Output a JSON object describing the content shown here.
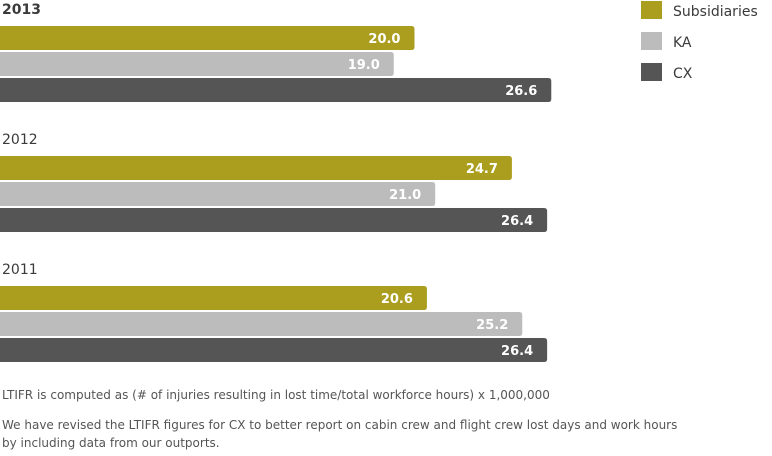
{
  "chart_data": {
    "type": "bar",
    "orientation": "horizontal",
    "categories": [
      "2013",
      "2012",
      "2011"
    ],
    "series": [
      {
        "name": "Subsidiaries",
        "color": "#ab9d1d",
        "values": [
          20.0,
          24.7,
          20.6
        ]
      },
      {
        "name": "KA",
        "color": "#bcbcbc",
        "values": [
          19.0,
          21.0,
          25.2
        ]
      },
      {
        "name": "CX",
        "color": "#555555",
        "values": [
          26.6,
          26.4,
          26.4
        ]
      }
    ],
    "value_labels": [
      [
        "20.0",
        "24.7",
        "20.6"
      ],
      [
        "19.0",
        "21.0",
        "25.2"
      ],
      [
        "26.6",
        "26.4",
        "26.4"
      ]
    ],
    "xlim": [
      0,
      27.6
    ],
    "legend_position": "top-right",
    "grid": false
  },
  "notes": [
    "LTIFR is computed as (# of injuries resulting in lost time/total workforce hours) x 1,000,000",
    "We have revised the LTIFR figures for CX to better report on cabin crew and flight crew lost days and work hours by including data from our outports."
  ]
}
